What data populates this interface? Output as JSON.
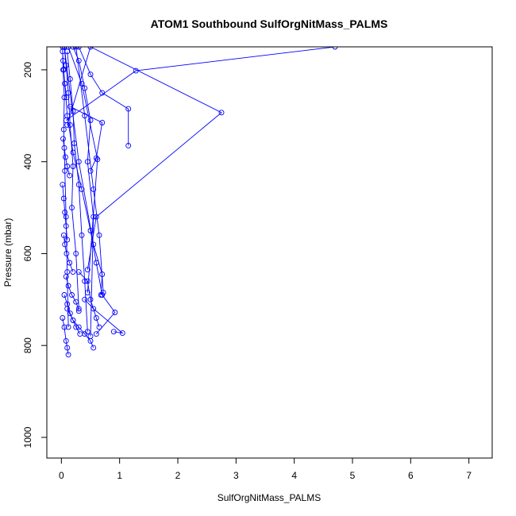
{
  "chart_data": {
    "type": "line",
    "title": "ATOM1 Southbound SulfOrgNitMass_PALMS",
    "xlabel": "SulfOrgNitMass_PALMS",
    "ylabel": "Pressure (mbar)",
    "xlim": [
      -0.25,
      7.4
    ],
    "ylim": [
      1045,
      150
    ],
    "y_reversed": true,
    "x_ticks": [
      0,
      1,
      2,
      3,
      4,
      5,
      6,
      7
    ],
    "y_ticks": [
      200,
      400,
      600,
      800,
      1000
    ],
    "grid": false,
    "legend": "none",
    "series_color": "#0000ff",
    "marker": "open-circle",
    "series": [
      {
        "x": [
          0.02,
          0.03,
          0.05,
          0.04,
          0.06,
          0.08,
          0.1,
          0.12
        ],
        "y": [
          150,
          200,
          260,
          330,
          420,
          520,
          640,
          760
        ]
      },
      {
        "x": [
          0.05,
          0.08,
          0.12,
          0.15,
          0.2,
          0.18,
          0.25,
          0.3
        ],
        "y": [
          150,
          190,
          250,
          320,
          410,
          500,
          600,
          720
        ]
      },
      {
        "x": [
          0.1,
          0.15,
          0.2,
          0.22,
          0.3,
          0.35,
          0.4,
          0.45
        ],
        "y": [
          160,
          220,
          290,
          360,
          450,
          560,
          660,
          770
        ]
      },
      {
        "x": [
          0.2,
          0.3,
          0.4,
          0.5,
          0.45,
          0.55,
          0.5
        ],
        "y": [
          150,
          180,
          240,
          310,
          400,
          520,
          780
        ]
      },
      {
        "x": [
          0.3,
          0.5,
          0.7,
          1.15,
          1.15
        ],
        "y": [
          150,
          210,
          250,
          285,
          365
        ]
      },
      {
        "x": [
          0.06,
          0.1,
          0.2,
          0.35,
          0.5,
          0.6,
          0.7,
          0.92,
          0.6
        ],
        "y": [
          230,
          300,
          380,
          460,
          550,
          620,
          690,
          728,
          775
        ]
      },
      {
        "x": [
          0.08,
          1.28,
          4.7
        ],
        "y": [
          310,
          202,
          150
        ]
      },
      {
        "x": [
          0.1,
          0.5,
          2.75,
          0.6,
          0.45
        ],
        "y": [
          320,
          150,
          293,
          520,
          635
        ]
      },
      {
        "x": [
          0.15,
          0.7,
          0.6,
          0.5
        ],
        "y": [
          280,
          315,
          392,
          420
        ]
      },
      {
        "x": [
          0.05,
          0.3,
          0.55,
          0.7,
          0.68
        ],
        "y": [
          150,
          400,
          580,
          645,
          690
        ]
      },
      {
        "x": [
          0.25,
          0.4,
          0.55,
          0.65,
          0.72
        ],
        "y": [
          150,
          300,
          460,
          560,
          685
        ]
      },
      {
        "x": [
          0.12,
          0.35,
          0.62,
          0.45
        ],
        "y": [
          150,
          230,
          395,
          685
        ]
      },
      {
        "x": [
          0.4,
          0.55,
          1.05,
          0.9
        ],
        "y": [
          700,
          720,
          773,
          770
        ]
      },
      {
        "x": [
          0.1,
          0.2,
          0.3,
          0.4,
          0.5,
          0.55
        ],
        "y": [
          720,
          745,
          760,
          775,
          790,
          805
        ]
      },
      {
        "x": [
          0.05,
          0.1,
          0.15,
          0.2,
          0.25,
          0.32
        ],
        "y": [
          690,
          710,
          730,
          745,
          760,
          775
        ]
      },
      {
        "x": [
          0.02,
          0.05,
          0.08,
          0.1,
          0.12
        ],
        "y": [
          740,
          760,
          790,
          805,
          820
        ]
      },
      {
        "x": [
          0.08,
          0.12,
          0.18,
          0.25,
          0.3
        ],
        "y": [
          650,
          670,
          690,
          705,
          725
        ]
      },
      {
        "x": [
          0.3,
          0.45,
          0.5,
          0.6,
          0.65
        ],
        "y": [
          640,
          660,
          700,
          740,
          760
        ]
      },
      {
        "x": [
          0.04,
          0.06,
          0.09,
          0.14,
          0.2
        ],
        "y": [
          560,
          580,
          600,
          620,
          640
        ]
      },
      {
        "x": [
          0.02,
          0.04,
          0.06,
          0.08,
          0.1
        ],
        "y": [
          450,
          480,
          510,
          540,
          570
        ]
      },
      {
        "x": [
          0.03,
          0.05,
          0.07,
          0.1,
          0.14
        ],
        "y": [
          350,
          370,
          390,
          410,
          430
        ]
      },
      {
        "x": [
          0.02,
          0.03,
          0.04,
          0.06,
          0.09
        ],
        "y": [
          160,
          180,
          200,
          230,
          260
        ]
      }
    ]
  }
}
